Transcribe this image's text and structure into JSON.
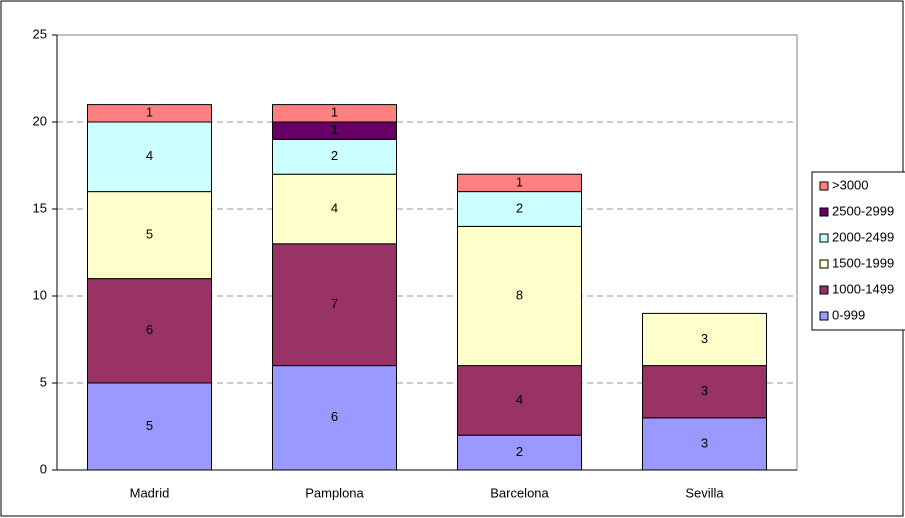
{
  "chart_data": {
    "type": "stacked_bar",
    "categories": [
      "Madrid",
      "Pamplona",
      "Barcelona",
      "Sevilla"
    ],
    "series": [
      {
        "name": "0-999",
        "color": "#9999ff",
        "values": [
          5,
          6,
          2,
          3
        ]
      },
      {
        "name": "1000-1499",
        "color": "#993366",
        "values": [
          6,
          7,
          4,
          3
        ]
      },
      {
        "name": "1500-1999",
        "color": "#ffffcc",
        "values": [
          5,
          4,
          8,
          3
        ]
      },
      {
        "name": "2000-2499",
        "color": "#ccffff",
        "values": [
          4,
          2,
          2,
          null
        ]
      },
      {
        "name": "2500-2999",
        "color": "#660066",
        "values": [
          null,
          1,
          null,
          null
        ]
      },
      {
        "name": ">3000",
        "color": "#ff8080",
        "values": [
          1,
          1,
          1,
          null
        ]
      }
    ],
    "ylim": [
      0,
      25
    ],
    "yticks": [
      0,
      5,
      10,
      15,
      20,
      25
    ],
    "grid": true,
    "legend": "right"
  }
}
